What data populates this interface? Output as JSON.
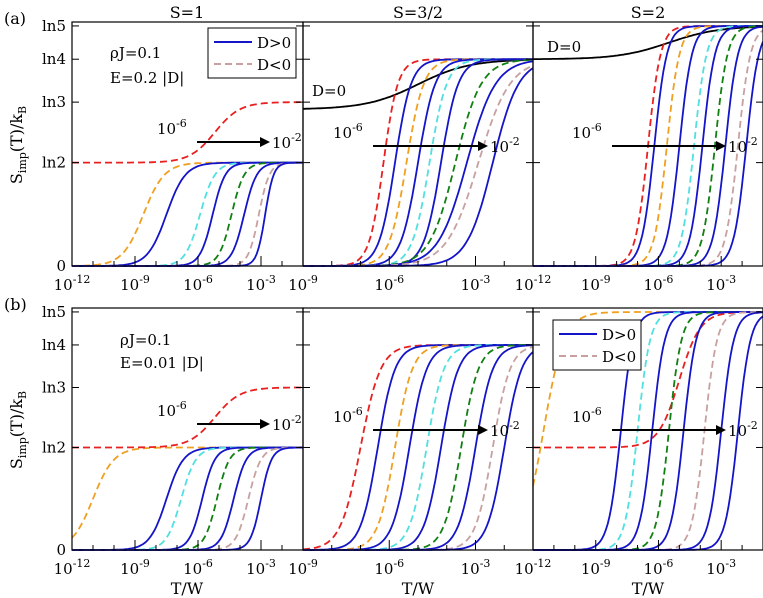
{
  "figure": {
    "column_titles": [
      "S=1",
      "S=3/2",
      "S=2"
    ],
    "row_labels": [
      "(a)",
      "(b)"
    ],
    "ylabel_main": "S",
    "ylabel_sub": "imp",
    "ylabel_rest": "(T)/k",
    "ylabel_rest_sub": "B",
    "xlabel": "T/W",
    "y_ticks": [
      "0",
      "ln2",
      "ln3",
      "ln4",
      "ln5"
    ],
    "legend": {
      "positive": "D>0",
      "negative": "D<0"
    },
    "colors": {
      "positive": "#1414c8",
      "negative": "#c8a0a0",
      "red": "#e82020",
      "orange": "#f0a020",
      "cyan": "#50e0e0",
      "green": "#108010",
      "black": "#000000"
    },
    "arrow": {
      "start": "10",
      "start_exp": "-6",
      "end": "10",
      "end_exp": "-2"
    },
    "row_a": {
      "params": [
        "ρJ=0.1",
        "E=0.2 |D|"
      ],
      "d_zero_label": "D=0"
    },
    "row_b": {
      "params": [
        "ρJ=0.1",
        "E=0.01 |D|"
      ]
    }
  },
  "chart_data": [
    {
      "type": "line",
      "panel": "a-S=1",
      "title": "S=1",
      "x_scale": "log",
      "xlim_exp": [
        -12,
        -1
      ],
      "x_tick_exps": [
        -12,
        -9,
        -6,
        -3
      ],
      "ylim": [
        0,
        1.609
      ],
      "series": [
        {
          "color": "orange",
          "dash": true,
          "low": 0.0,
          "high": 0.693,
          "center": -8.6,
          "width": 0.5
        },
        {
          "color": "positive",
          "dash": false,
          "low": 0.0,
          "high": 0.693,
          "center": -7.5,
          "width": 0.45
        },
        {
          "color": "cyan",
          "dash": true,
          "low": 0.0,
          "high": 0.693,
          "center": -5.9,
          "width": 0.35
        },
        {
          "color": "positive",
          "dash": false,
          "low": 0.0,
          "high": 0.693,
          "center": -5.3,
          "width": 0.3
        },
        {
          "color": "green",
          "dash": true,
          "low": 0.0,
          "high": 0.693,
          "center": -4.4,
          "width": 0.3
        },
        {
          "color": "positive",
          "dash": false,
          "low": 0.0,
          "high": 0.693,
          "center": -3.8,
          "width": 0.3
        },
        {
          "color": "negative",
          "dash": true,
          "low": 0.0,
          "high": 0.693,
          "center": -3.1,
          "width": 0.25
        },
        {
          "color": "positive",
          "dash": false,
          "low": 0.0,
          "high": 0.693,
          "center": -2.8,
          "width": 0.2
        },
        {
          "color": "red",
          "dash": true,
          "low": 0.693,
          "high": 1.099,
          "center": -5.2,
          "width": 0.6,
          "top": true
        }
      ]
    },
    {
      "type": "line",
      "panel": "a-S=3/2",
      "title": "S=3/2",
      "x_scale": "log",
      "xlim_exp": [
        -9,
        -1
      ],
      "x_tick_exps": [
        -9,
        -6,
        -3
      ],
      "ylim": [
        0,
        1.609
      ],
      "series": [
        {
          "color": "black",
          "dash": false,
          "low": 1.05,
          "high": 1.386,
          "center": -5.0,
          "width": 0.9,
          "top": true
        },
        {
          "color": "red",
          "dash": true,
          "low": 0.0,
          "high": 1.386,
          "center": -6.2,
          "width": 0.25
        },
        {
          "color": "positive",
          "dash": false,
          "low": 0.0,
          "high": 1.386,
          "center": -5.8,
          "width": 0.28
        },
        {
          "color": "orange",
          "dash": true,
          "low": 0.0,
          "high": 1.386,
          "center": -5.4,
          "width": 0.3
        },
        {
          "color": "positive",
          "dash": false,
          "low": 0.0,
          "high": 1.386,
          "center": -5.0,
          "width": 0.3
        },
        {
          "color": "cyan",
          "dash": true,
          "low": 0.0,
          "high": 1.386,
          "center": -4.6,
          "width": 0.3
        },
        {
          "color": "positive",
          "dash": false,
          "low": 0.0,
          "high": 1.386,
          "center": -4.2,
          "width": 0.3
        },
        {
          "color": "green",
          "dash": true,
          "low": 0.0,
          "high": 1.386,
          "center": -3.7,
          "width": 0.45
        },
        {
          "color": "positive",
          "dash": false,
          "low": 0.0,
          "high": 1.386,
          "center": -3.3,
          "width": 0.5
        },
        {
          "color": "negative",
          "dash": true,
          "low": 0.0,
          "high": 1.386,
          "center": -2.9,
          "width": 0.55
        },
        {
          "color": "positive",
          "dash": false,
          "low": 0.0,
          "high": 1.386,
          "center": -2.4,
          "width": 0.45
        }
      ]
    },
    {
      "type": "line",
      "panel": "a-S=2",
      "title": "S=2",
      "x_scale": "log",
      "xlim_exp": [
        -12,
        -1
      ],
      "x_tick_exps": [
        -12,
        -9,
        -6,
        -3
      ],
      "ylim": [
        0,
        1.609
      ],
      "series": [
        {
          "color": "black",
          "dash": false,
          "low": 1.386,
          "high": 1.609,
          "center": -5.5,
          "width": 1.2,
          "top": true
        },
        {
          "color": "red",
          "dash": true,
          "low": 0.0,
          "high": 1.609,
          "center": -6.5,
          "width": 0.3
        },
        {
          "color": "positive",
          "dash": false,
          "low": 0.0,
          "high": 1.609,
          "center": -6.2,
          "width": 0.3
        },
        {
          "color": "orange",
          "dash": true,
          "low": 0.0,
          "high": 1.609,
          "center": -5.6,
          "width": 0.3
        },
        {
          "color": "positive",
          "dash": false,
          "low": 0.0,
          "high": 1.609,
          "center": -5.0,
          "width": 0.3
        },
        {
          "color": "cyan",
          "dash": true,
          "low": 0.0,
          "high": 1.609,
          "center": -4.3,
          "width": 0.3
        },
        {
          "color": "positive",
          "dash": false,
          "low": 0.0,
          "high": 1.609,
          "center": -3.9,
          "width": 0.3
        },
        {
          "color": "green",
          "dash": true,
          "low": 0.0,
          "high": 1.609,
          "center": -3.3,
          "width": 0.3
        },
        {
          "color": "positive",
          "dash": false,
          "low": 0.0,
          "high": 1.609,
          "center": -2.8,
          "width": 0.3
        },
        {
          "color": "negative",
          "dash": true,
          "low": 0.0,
          "high": 1.609,
          "center": -2.2,
          "width": 0.3
        },
        {
          "color": "positive",
          "dash": false,
          "low": 0.0,
          "high": 1.609,
          "center": -1.8,
          "width": 0.3
        }
      ]
    },
    {
      "type": "line",
      "panel": "b-S=1",
      "x_scale": "log",
      "xlim_exp": [
        -12,
        -1
      ],
      "x_tick_exps": [
        -12,
        -9,
        -6,
        -3
      ],
      "ylim": [
        0,
        1.609
      ],
      "series": [
        {
          "color": "orange",
          "dash": true,
          "low": 0.0,
          "high": 0.693,
          "center": -11.0,
          "width": 0.5
        },
        {
          "color": "positive",
          "dash": false,
          "low": 0.0,
          "high": 0.693,
          "center": -7.5,
          "width": 0.4
        },
        {
          "color": "cyan",
          "dash": true,
          "low": 0.0,
          "high": 0.693,
          "center": -6.8,
          "width": 0.35
        },
        {
          "color": "positive",
          "dash": false,
          "low": 0.0,
          "high": 0.693,
          "center": -5.8,
          "width": 0.3
        },
        {
          "color": "green",
          "dash": true,
          "low": 0.0,
          "high": 0.693,
          "center": -5.1,
          "width": 0.3
        },
        {
          "color": "positive",
          "dash": false,
          "low": 0.0,
          "high": 0.693,
          "center": -4.3,
          "width": 0.3
        },
        {
          "color": "negative",
          "dash": true,
          "low": 0.0,
          "high": 0.693,
          "center": -3.6,
          "width": 0.3
        },
        {
          "color": "positive",
          "dash": false,
          "low": 0.0,
          "high": 0.693,
          "center": -3.0,
          "width": 0.25
        },
        {
          "color": "red",
          "dash": true,
          "low": 0.693,
          "high": 1.099,
          "center": -5.2,
          "width": 0.6,
          "top": true
        }
      ]
    },
    {
      "type": "line",
      "panel": "b-S=3/2",
      "x_scale": "log",
      "xlim_exp": [
        -9,
        -1
      ],
      "x_tick_exps": [
        -9,
        -6,
        -3
      ],
      "ylim": [
        0,
        1.609
      ],
      "series": [
        {
          "color": "red",
          "dash": true,
          "low": 0.0,
          "high": 1.386,
          "center": -7.0,
          "width": 0.35
        },
        {
          "color": "positive",
          "dash": false,
          "low": 0.0,
          "high": 1.386,
          "center": -6.4,
          "width": 0.3
        },
        {
          "color": "orange",
          "dash": true,
          "low": 0.0,
          "high": 1.386,
          "center": -5.8,
          "width": 0.3
        },
        {
          "color": "positive",
          "dash": false,
          "low": 0.0,
          "high": 1.386,
          "center": -5.3,
          "width": 0.3
        },
        {
          "color": "cyan",
          "dash": true,
          "low": 0.0,
          "high": 1.386,
          "center": -4.7,
          "width": 0.3
        },
        {
          "color": "positive",
          "dash": false,
          "low": 0.0,
          "high": 1.386,
          "center": -4.2,
          "width": 0.3
        },
        {
          "color": "green",
          "dash": true,
          "low": 0.0,
          "high": 1.386,
          "center": -3.5,
          "width": 0.3
        },
        {
          "color": "positive",
          "dash": false,
          "low": 0.0,
          "high": 1.386,
          "center": -3.0,
          "width": 0.3
        },
        {
          "color": "negative",
          "dash": true,
          "low": 0.0,
          "high": 1.386,
          "center": -2.4,
          "width": 0.3
        },
        {
          "color": "positive",
          "dash": false,
          "low": 0.0,
          "high": 1.386,
          "center": -2.0,
          "width": 0.3
        }
      ]
    },
    {
      "type": "line",
      "panel": "b-S=2",
      "x_scale": "log",
      "xlim_exp": [
        -12,
        -1
      ],
      "x_tick_exps": [
        -12,
        -9,
        -6,
        -3
      ],
      "ylim": [
        0,
        1.609
      ],
      "series": [
        {
          "color": "red",
          "dash": true,
          "low": 0.693,
          "high": 1.609,
          "center": -5.0,
          "width": 0.5
        },
        {
          "color": "orange",
          "dash": true,
          "low": 0.0,
          "high": 1.609,
          "center": -11.5,
          "width": 0.5
        },
        {
          "color": "positive",
          "dash": false,
          "low": 0.0,
          "high": 1.609,
          "center": -7.8,
          "width": 0.3
        },
        {
          "color": "cyan",
          "dash": true,
          "low": 0.0,
          "high": 1.609,
          "center": -7.0,
          "width": 0.3
        },
        {
          "color": "positive",
          "dash": false,
          "low": 0.0,
          "high": 1.609,
          "center": -6.3,
          "width": 0.3
        },
        {
          "color": "green",
          "dash": true,
          "low": 0.0,
          "high": 1.609,
          "center": -5.5,
          "width": 0.3
        },
        {
          "color": "positive",
          "dash": false,
          "low": 0.0,
          "high": 1.609,
          "center": -4.8,
          "width": 0.3
        },
        {
          "color": "negative",
          "dash": true,
          "low": 0.0,
          "high": 1.609,
          "center": -3.8,
          "width": 0.3
        },
        {
          "color": "positive",
          "dash": false,
          "low": 0.0,
          "high": 1.609,
          "center": -3.0,
          "width": 0.3
        },
        {
          "color": "positive",
          "dash": false,
          "low": 0.0,
          "high": 1.609,
          "center": -2.2,
          "width": 0.3
        }
      ]
    }
  ]
}
